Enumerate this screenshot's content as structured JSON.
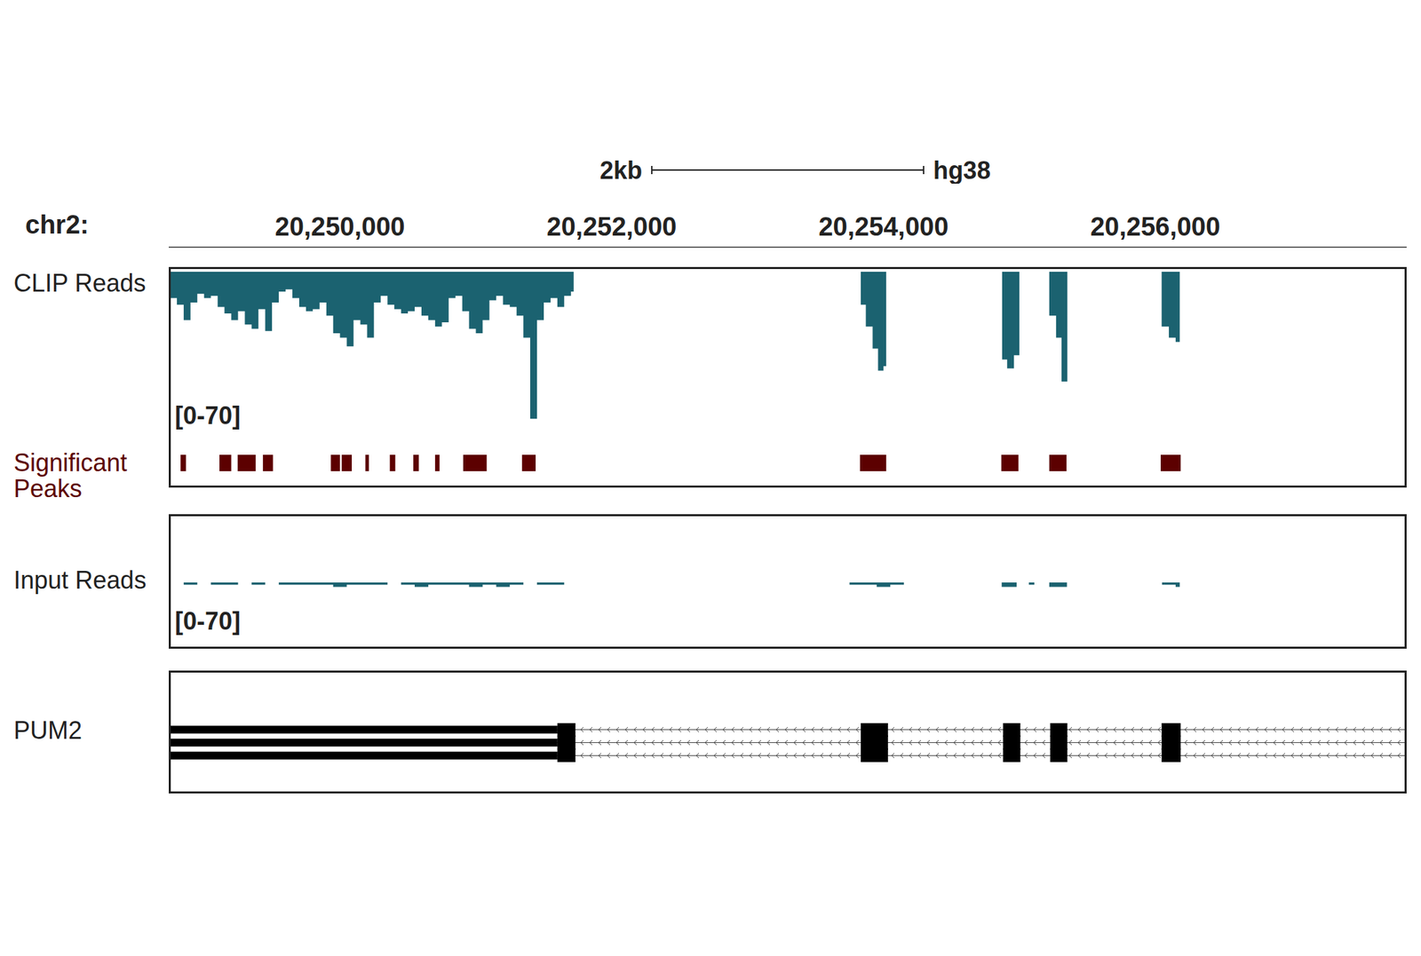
{
  "chart_data": {
    "type": "genome_tracks",
    "genome": "hg38",
    "chromosome": "chr2:",
    "scale_bar": {
      "label": "2kb",
      "length": 2000
    },
    "xlim": [
      20248740,
      20257850
    ],
    "xticks": [
      {
        "value": 20250000,
        "label": "20,250,000"
      },
      {
        "value": 20252000,
        "label": "20,252,000"
      },
      {
        "value": 20254000,
        "label": "20,254,000"
      },
      {
        "value": 20256000,
        "label": "20,256,000"
      }
    ],
    "tracks": [
      {
        "name": "CLIP Reads",
        "type": "area",
        "color": "#1b6270",
        "ylim": [
          0,
          70
        ],
        "range_label": "[0-70]",
        "x": [
          20248750,
          20248800,
          20248850,
          20248900,
          20248950,
          20249000,
          20249050,
          20249100,
          20249150,
          20249200,
          20249250,
          20249300,
          20249350,
          20249400,
          20249450,
          20249500,
          20249550,
          20249600,
          20249650,
          20249700,
          20249750,
          20249800,
          20249850,
          20249900,
          20249950,
          20250000,
          20250050,
          20250100,
          20250150,
          20250200,
          20250250,
          20250300,
          20250350,
          20250400,
          20250450,
          20250500,
          20250550,
          20250600,
          20250650,
          20250700,
          20250750,
          20250800,
          20250850,
          20250900,
          20250950,
          20251000,
          20251050,
          20251100,
          20251150,
          20251200,
          20251250,
          20251300,
          20251350,
          20251400,
          20251450,
          20251500,
          20251550,
          20251600,
          20251650,
          20251700,
          20251720,
          20253833,
          20253870,
          20253920,
          20253960,
          20254000,
          20254020,
          20254873,
          20254910,
          20254960,
          20255000,
          20255220,
          20255270,
          20255310,
          20255353,
          20256047,
          20256100,
          20256150,
          20256180
        ],
        "values": [
          12,
          15,
          22,
          14,
          10,
          12,
          11,
          16,
          19,
          22,
          18,
          24,
          26,
          17,
          27,
          14,
          9,
          8,
          12,
          16,
          18,
          17,
          14,
          20,
          28,
          30,
          34,
          22,
          24,
          30,
          14,
          11,
          15,
          17,
          19,
          18,
          16,
          20,
          22,
          25,
          23,
          12,
          11,
          18,
          26,
          28,
          22,
          13,
          11,
          15,
          16,
          20,
          30,
          67,
          22,
          14,
          12,
          16,
          11,
          9,
          0,
          15,
          25,
          35,
          45,
          43,
          0,
          40,
          44,
          38,
          0,
          20,
          30,
          50,
          0,
          25,
          30,
          32,
          0
        ]
      },
      {
        "name": "Significant Peaks",
        "type": "intervals",
        "color": "#5c0000",
        "intervals": [
          [
            20248827,
            20248867
          ],
          [
            20249113,
            20249200
          ],
          [
            20249247,
            20249380
          ],
          [
            20249433,
            20249507
          ],
          [
            20249933,
            20250000
          ],
          [
            20250013,
            20250087
          ],
          [
            20250187,
            20250213
          ],
          [
            20250367,
            20250407
          ],
          [
            20250540,
            20250580
          ],
          [
            20250700,
            20250733
          ],
          [
            20250907,
            20251080
          ],
          [
            20251340,
            20251440
          ],
          [
            20253827,
            20254020
          ],
          [
            20254867,
            20254993
          ],
          [
            20255220,
            20255347
          ],
          [
            20256040,
            20256187
          ]
        ]
      },
      {
        "name": "Input Reads",
        "type": "area",
        "color": "#1b6270",
        "ylim": [
          0,
          70
        ],
        "range_label": "[0-70]",
        "x": [
          20248850,
          20248950,
          20249050,
          20249150,
          20249250,
          20249350,
          20249450,
          20249550,
          20249650,
          20249750,
          20249850,
          20249950,
          20250050,
          20250150,
          20250250,
          20250350,
          20250450,
          20250550,
          20250650,
          20250750,
          20250850,
          20250950,
          20251050,
          20251150,
          20251250,
          20251350,
          20251450,
          20251550,
          20251650,
          20251750,
          20253750,
          20253850,
          20253950,
          20254050,
          20254150,
          20254870,
          20254980,
          20255070,
          20255110,
          20255220,
          20255350,
          20256050,
          20256150,
          20256180
        ],
        "values": [
          1,
          0,
          1,
          1,
          0,
          1,
          0,
          1,
          1,
          1,
          1,
          2,
          1,
          1,
          1,
          0,
          1,
          2,
          1,
          1,
          1,
          2,
          1,
          2,
          1,
          0,
          1,
          1,
          0,
          0,
          1,
          1,
          2,
          1,
          0,
          2,
          0,
          1,
          0,
          2,
          0,
          1,
          2,
          0
        ]
      },
      {
        "name": "PUM2",
        "type": "gene",
        "strand": "-",
        "color": "#000000",
        "transcripts": [
          {
            "span": [
              20248740,
              20257850
            ],
            "utr": [
              [
                20248740,
                20251600
              ]
            ],
            "exons": [
              [
                20251600,
                20251733
              ],
              [
                20253833,
                20254033
              ],
              [
                20254880,
                20255007
              ],
              [
                20255227,
                20255353
              ],
              [
                20256047,
                20256187
              ]
            ]
          },
          {
            "span": [
              20248740,
              20257850
            ],
            "utr": [
              [
                20248740,
                20251600
              ]
            ],
            "exons": [
              [
                20251600,
                20251733
              ],
              [
                20253833,
                20254033
              ],
              [
                20254880,
                20255007
              ],
              [
                20255227,
                20255353
              ],
              [
                20256047,
                20256187
              ]
            ]
          },
          {
            "span": [
              20248740,
              20257850
            ],
            "utr": [
              [
                20248740,
                20251600
              ]
            ],
            "exons": [
              [
                20251600,
                20251733
              ],
              [
                20253833,
                20254033
              ],
              [
                20254880,
                20255007
              ],
              [
                20255227,
                20255353
              ],
              [
                20256047,
                20256187
              ]
            ]
          }
        ]
      }
    ]
  }
}
